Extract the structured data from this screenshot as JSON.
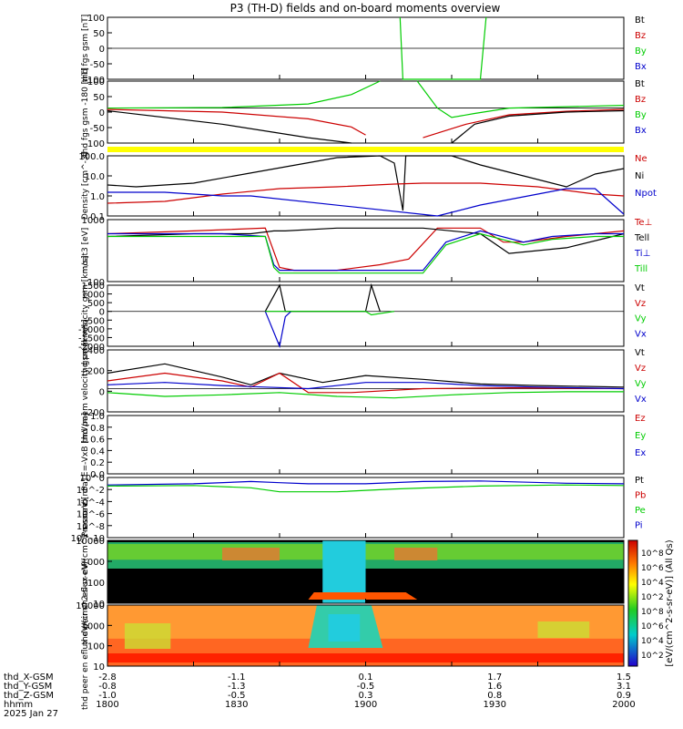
{
  "title": "P3 (TH-D) fields and on-board moments overview",
  "date_label": "2025 Jan 27",
  "time_axis": {
    "row_labels": [
      "thd_X-GSM",
      "thd_Y-GSM",
      "thd_Z-GSM",
      "hhmm"
    ],
    "columns": [
      {
        "x": -2.8,
        "y": -0.8,
        "z": -1.0,
        "hhmm": "1800"
      },
      {
        "x": -1.1,
        "y": -1.3,
        "z": -0.5,
        "hhmm": "1830"
      },
      {
        "x": 0.1,
        "y": -0.5,
        "z": 0.3,
        "hhmm": "1900"
      },
      {
        "x": 1.7,
        "y": 1.6,
        "z": 0.8,
        "hhmm": "1930"
      },
      {
        "x": 1.5,
        "y": 3.1,
        "z": 0.9,
        "hhmm": "2000"
      }
    ]
  },
  "colors": {
    "black": "#000000",
    "red": "#cc0000",
    "green": "#00cc00",
    "blue": "#0000cc",
    "yellow": "#ffff00"
  },
  "colorbar": {
    "label": "[eV/(cm^2-s-sr-eV)] (All Qs)",
    "ticks": [
      "10^8",
      "10^6",
      "10^4",
      "10^2",
      "10^8",
      "10^6",
      "10^4",
      "10^2"
    ]
  },
  "chart_data": [
    {
      "type": "line",
      "id": "fgs",
      "ylabel": "thd fgs gsm [nT]",
      "yticks": [
        "100",
        "50",
        "0",
        "-50",
        "-100"
      ],
      "ylim": [
        -100,
        100
      ],
      "legend": [
        {
          "name": "Bt",
          "color": "black"
        },
        {
          "name": "Bz",
          "color": "red"
        },
        {
          "name": "By",
          "color": "green"
        },
        {
          "name": "Bx",
          "color": "blue"
        }
      ],
      "series": [
        {
          "name": "By",
          "color": "green",
          "x": [
            0,
            100,
            102,
            103,
            130,
            132,
            180
          ],
          "y": [
            null,
            null,
            100,
            -100,
            -100,
            100,
            null
          ]
        }
      ]
    },
    {
      "type": "line",
      "id": "fgs_hires",
      "ylabel": "thd fgs gsm -180 [nT]",
      "yticks": [
        "100",
        "50",
        "0",
        "-50",
        "-100"
      ],
      "ylim": [
        -130,
        100
      ],
      "legend": [
        {
          "name": "Bt",
          "color": "black"
        },
        {
          "name": "Bz",
          "color": "red"
        },
        {
          "name": "By",
          "color": "green"
        },
        {
          "name": "Bx",
          "color": "blue"
        }
      ],
      "series": [
        {
          "name": "By",
          "color": "green",
          "x": [
            0,
            40,
            70,
            85,
            95,
            100,
            108,
            115,
            120,
            128,
            140,
            160,
            180
          ],
          "y": [
            0,
            2,
            15,
            50,
            100,
            null,
            100,
            0,
            -35,
            -20,
            0,
            5,
            10
          ]
        },
        {
          "name": "Bz",
          "color": "red",
          "x": [
            0,
            40,
            70,
            85,
            90,
            95,
            110,
            125,
            140,
            160,
            180
          ],
          "y": [
            -5,
            -15,
            -40,
            -70,
            -100,
            null,
            -110,
            -60,
            -25,
            -12,
            -5
          ]
        },
        {
          "name": "Bt",
          "color": "black",
          "x": [
            0,
            40,
            70,
            85,
            90,
            110,
            120,
            128,
            140,
            160,
            180
          ],
          "y": [
            -10,
            -60,
            -110,
            -130,
            null,
            null,
            -130,
            -60,
            -30,
            -15,
            -10
          ]
        }
      ]
    },
    {
      "type": "line",
      "id": "density",
      "ylabel": "Density [cm^-3]",
      "yticks": [
        "100.0",
        "10.0",
        "1.0",
        "0.1"
      ],
      "ylim_log10": [
        -1.3,
        2
      ],
      "legend": [
        {
          "name": "Ne",
          "color": "red"
        },
        {
          "name": "Ni",
          "color": "black"
        },
        {
          "name": "Npot",
          "color": "blue"
        }
      ],
      "series": [
        {
          "name": "Ni",
          "color": "black",
          "x": [
            0,
            10,
            30,
            55,
            80,
            95,
            100,
            103,
            104,
            105,
            108,
            120,
            130,
            140,
            160,
            170,
            180
          ],
          "y": [
            0.4,
            0.3,
            0.5,
            1.2,
            1.9,
            2.0,
            1.6,
            -1,
            2,
            2,
            2,
            2,
            1.5,
            1.1,
            0.3,
            1.0,
            1.3
          ]
        },
        {
          "name": "Ne",
          "color": "red",
          "x": [
            0,
            20,
            40,
            60,
            80,
            100,
            110,
            130,
            150,
            170,
            180
          ],
          "y": [
            -0.6,
            -0.5,
            -0.1,
            0.2,
            0.3,
            0.45,
            0.5,
            0.5,
            0.3,
            -0.1,
            -0.2
          ]
        },
        {
          "name": "Npot",
          "color": "blue",
          "x": [
            0,
            20,
            40,
            50,
            115,
            130,
            160,
            170,
            180
          ],
          "y": [
            0,
            0,
            -0.2,
            -0.2,
            -1.3,
            -0.7,
            0.2,
            0.2,
            -1.2
          ]
        }
      ]
    },
    {
      "type": "line",
      "id": "moments_temp",
      "ylabel": "moat3 [eV]",
      "yticks": [
        "1000",
        "100"
      ],
      "ylim_log10": [
        1.6,
        3.8
      ],
      "legend": [
        {
          "name": "Te⊥",
          "color": "red"
        },
        {
          "name": "Tell",
          "color": "black"
        },
        {
          "name": "Ti⊥",
          "color": "blue"
        },
        {
          "name": "Till",
          "color": "green"
        }
      ],
      "series": [
        {
          "name": "Te⊥",
          "color": "red",
          "x": [
            0,
            30,
            55,
            60,
            65,
            80,
            95,
            105,
            115,
            130,
            138,
            145,
            160,
            180
          ],
          "y": [
            3.3,
            3.4,
            3.5,
            2.1,
            2.0,
            2.0,
            2.2,
            2.4,
            3.5,
            3.5,
            3.0,
            3.0,
            3.2,
            3.4
          ]
        },
        {
          "name": "Tell",
          "color": "black",
          "x": [
            0,
            30,
            50,
            58,
            62,
            80,
            95,
            100,
            110,
            130,
            140,
            150,
            160,
            180
          ],
          "y": [
            3.2,
            3.3,
            3.3,
            3.4,
            3.4,
            3.5,
            3.5,
            3.5,
            3.5,
            3.3,
            2.6,
            2.7,
            2.8,
            3.3
          ]
        },
        {
          "name": "Ti⊥",
          "color": "blue",
          "x": [
            0,
            40,
            55,
            58,
            60,
            100,
            110,
            118,
            130,
            145,
            155,
            170,
            180
          ],
          "y": [
            3.3,
            3.3,
            3.2,
            2.2,
            2.0,
            2.0,
            2.0,
            3.0,
            3.4,
            3.0,
            3.2,
            3.3,
            3.3
          ]
        },
        {
          "name": "Till",
          "color": "green",
          "x": [
            0,
            40,
            55,
            58,
            60,
            100,
            110,
            118,
            130,
            145,
            155,
            170,
            180
          ],
          "y": [
            3.2,
            3.2,
            3.2,
            2.1,
            1.9,
            1.9,
            1.9,
            2.9,
            3.3,
            2.9,
            3.1,
            3.2,
            3.2
          ]
        }
      ]
    },
    {
      "type": "line",
      "id": "peim_velocity",
      "ylabel": "thd peim velocity gsm [km/s]",
      "yticks": [
        "1500",
        "1000",
        "500",
        "0",
        "-500",
        "-1000",
        "-1500",
        "-2000"
      ],
      "ylim": [
        -2000,
        1500
      ],
      "legend": [
        {
          "name": "Vt",
          "color": "black"
        },
        {
          "name": "Vz",
          "color": "red"
        },
        {
          "name": "Vy",
          "color": "green"
        },
        {
          "name": "Vx",
          "color": "blue"
        }
      ],
      "series": [
        {
          "name": "Vt",
          "color": "black",
          "x": [
            55,
            60,
            62,
            90,
            92,
            95
          ],
          "y": [
            0,
            1500,
            0,
            0,
            1500,
            0
          ]
        },
        {
          "name": "Vx",
          "color": "blue",
          "x": [
            55,
            60,
            62,
            64
          ],
          "y": [
            0,
            -2000,
            -300,
            0
          ]
        },
        {
          "name": "Vy",
          "color": "green",
          "x": [
            55,
            90,
            92,
            100
          ],
          "y": [
            0,
            0,
            -200,
            0
          ]
        }
      ]
    },
    {
      "type": "line",
      "id": "peem_velocity",
      "ylabel": "thd peem velocity gsm [km/s]",
      "yticks": [
        "400",
        "200",
        "0",
        "-200"
      ],
      "ylim": [
        -300,
        500
      ],
      "legend": [
        {
          "name": "Vt",
          "color": "black"
        },
        {
          "name": "Vz",
          "color": "red"
        },
        {
          "name": "Vy",
          "color": "green"
        },
        {
          "name": "Vx",
          "color": "blue"
        }
      ],
      "series": [
        {
          "name": "Vt",
          "color": "black",
          "x": [
            0,
            20,
            40,
            50,
            60,
            75,
            90,
            110,
            130,
            150,
            180
          ],
          "y": [
            200,
            320,
            150,
            50,
            200,
            80,
            170,
            120,
            60,
            40,
            20
          ]
        },
        {
          "name": "Vz",
          "color": "red",
          "x": [
            0,
            20,
            40,
            50,
            60,
            70,
            85,
            110,
            140,
            180
          ],
          "y": [
            100,
            200,
            100,
            20,
            200,
            -50,
            -50,
            0,
            10,
            0
          ]
        },
        {
          "name": "Vx",
          "color": "blue",
          "x": [
            0,
            20,
            40,
            55,
            70,
            90,
            110,
            130,
            150,
            180
          ],
          "y": [
            50,
            80,
            40,
            20,
            0,
            80,
            80,
            40,
            20,
            0
          ]
        },
        {
          "name": "Vy",
          "color": "green",
          "x": [
            0,
            20,
            40,
            60,
            80,
            100,
            120,
            140,
            160,
            180
          ],
          "y": [
            -50,
            -100,
            -80,
            -50,
            -100,
            -120,
            -80,
            -50,
            -40,
            -40
          ]
        }
      ]
    },
    {
      "type": "line",
      "id": "e_field",
      "ylabel": "E=-VxB [mV/m]",
      "yticks": [
        "1.0",
        "0.8",
        "0.6",
        "0.4",
        "0.2",
        "0.0"
      ],
      "ylim": [
        0,
        1
      ],
      "legend": [
        {
          "name": "Ez",
          "color": "red"
        },
        {
          "name": "Ey",
          "color": "green"
        },
        {
          "name": "Ex",
          "color": "blue"
        }
      ],
      "series": []
    },
    {
      "type": "line",
      "id": "pressure",
      "ylabel": "Pressure [nPa]",
      "yticks": [
        "10^0",
        "10^-2",
        "10^-4",
        "10^-6",
        "10^-8",
        "10^-10"
      ],
      "ylim_log10": [
        -10,
        0.5
      ],
      "legend": [
        {
          "name": "Pt",
          "color": "black"
        },
        {
          "name": "Pb",
          "color": "red"
        },
        {
          "name": "Pe",
          "color": "green"
        },
        {
          "name": "Pi",
          "color": "blue"
        }
      ],
      "series": [
        {
          "name": "Pi",
          "color": "blue",
          "x": [
            0,
            30,
            50,
            60,
            70,
            90,
            110,
            130,
            160,
            180
          ],
          "y": [
            -0.8,
            -0.6,
            -0.2,
            -0.4,
            -0.6,
            -0.6,
            -0.2,
            -0.1,
            -0.5,
            -0.6
          ]
        },
        {
          "name": "Pe",
          "color": "green",
          "x": [
            0,
            30,
            50,
            60,
            80,
            100,
            130,
            160,
            180
          ],
          "y": [
            -1.0,
            -0.9,
            -1.3,
            -2.0,
            -2.0,
            -1.5,
            -1.0,
            -0.8,
            -0.9
          ]
        }
      ]
    },
    {
      "type": "heatmap",
      "id": "peir_eflux",
      "ylabel": "thd peir en eflux eV/(cm^2-s-sr-eV)",
      "yticks": [
        "10000",
        "1000",
        "100",
        "10"
      ]
    },
    {
      "type": "heatmap",
      "id": "peer_eflux",
      "ylabel": "thd peer en eflux eV/(cm^2-s-sr-eV)",
      "yticks": [
        "10000",
        "1000",
        "100",
        "10"
      ]
    }
  ]
}
